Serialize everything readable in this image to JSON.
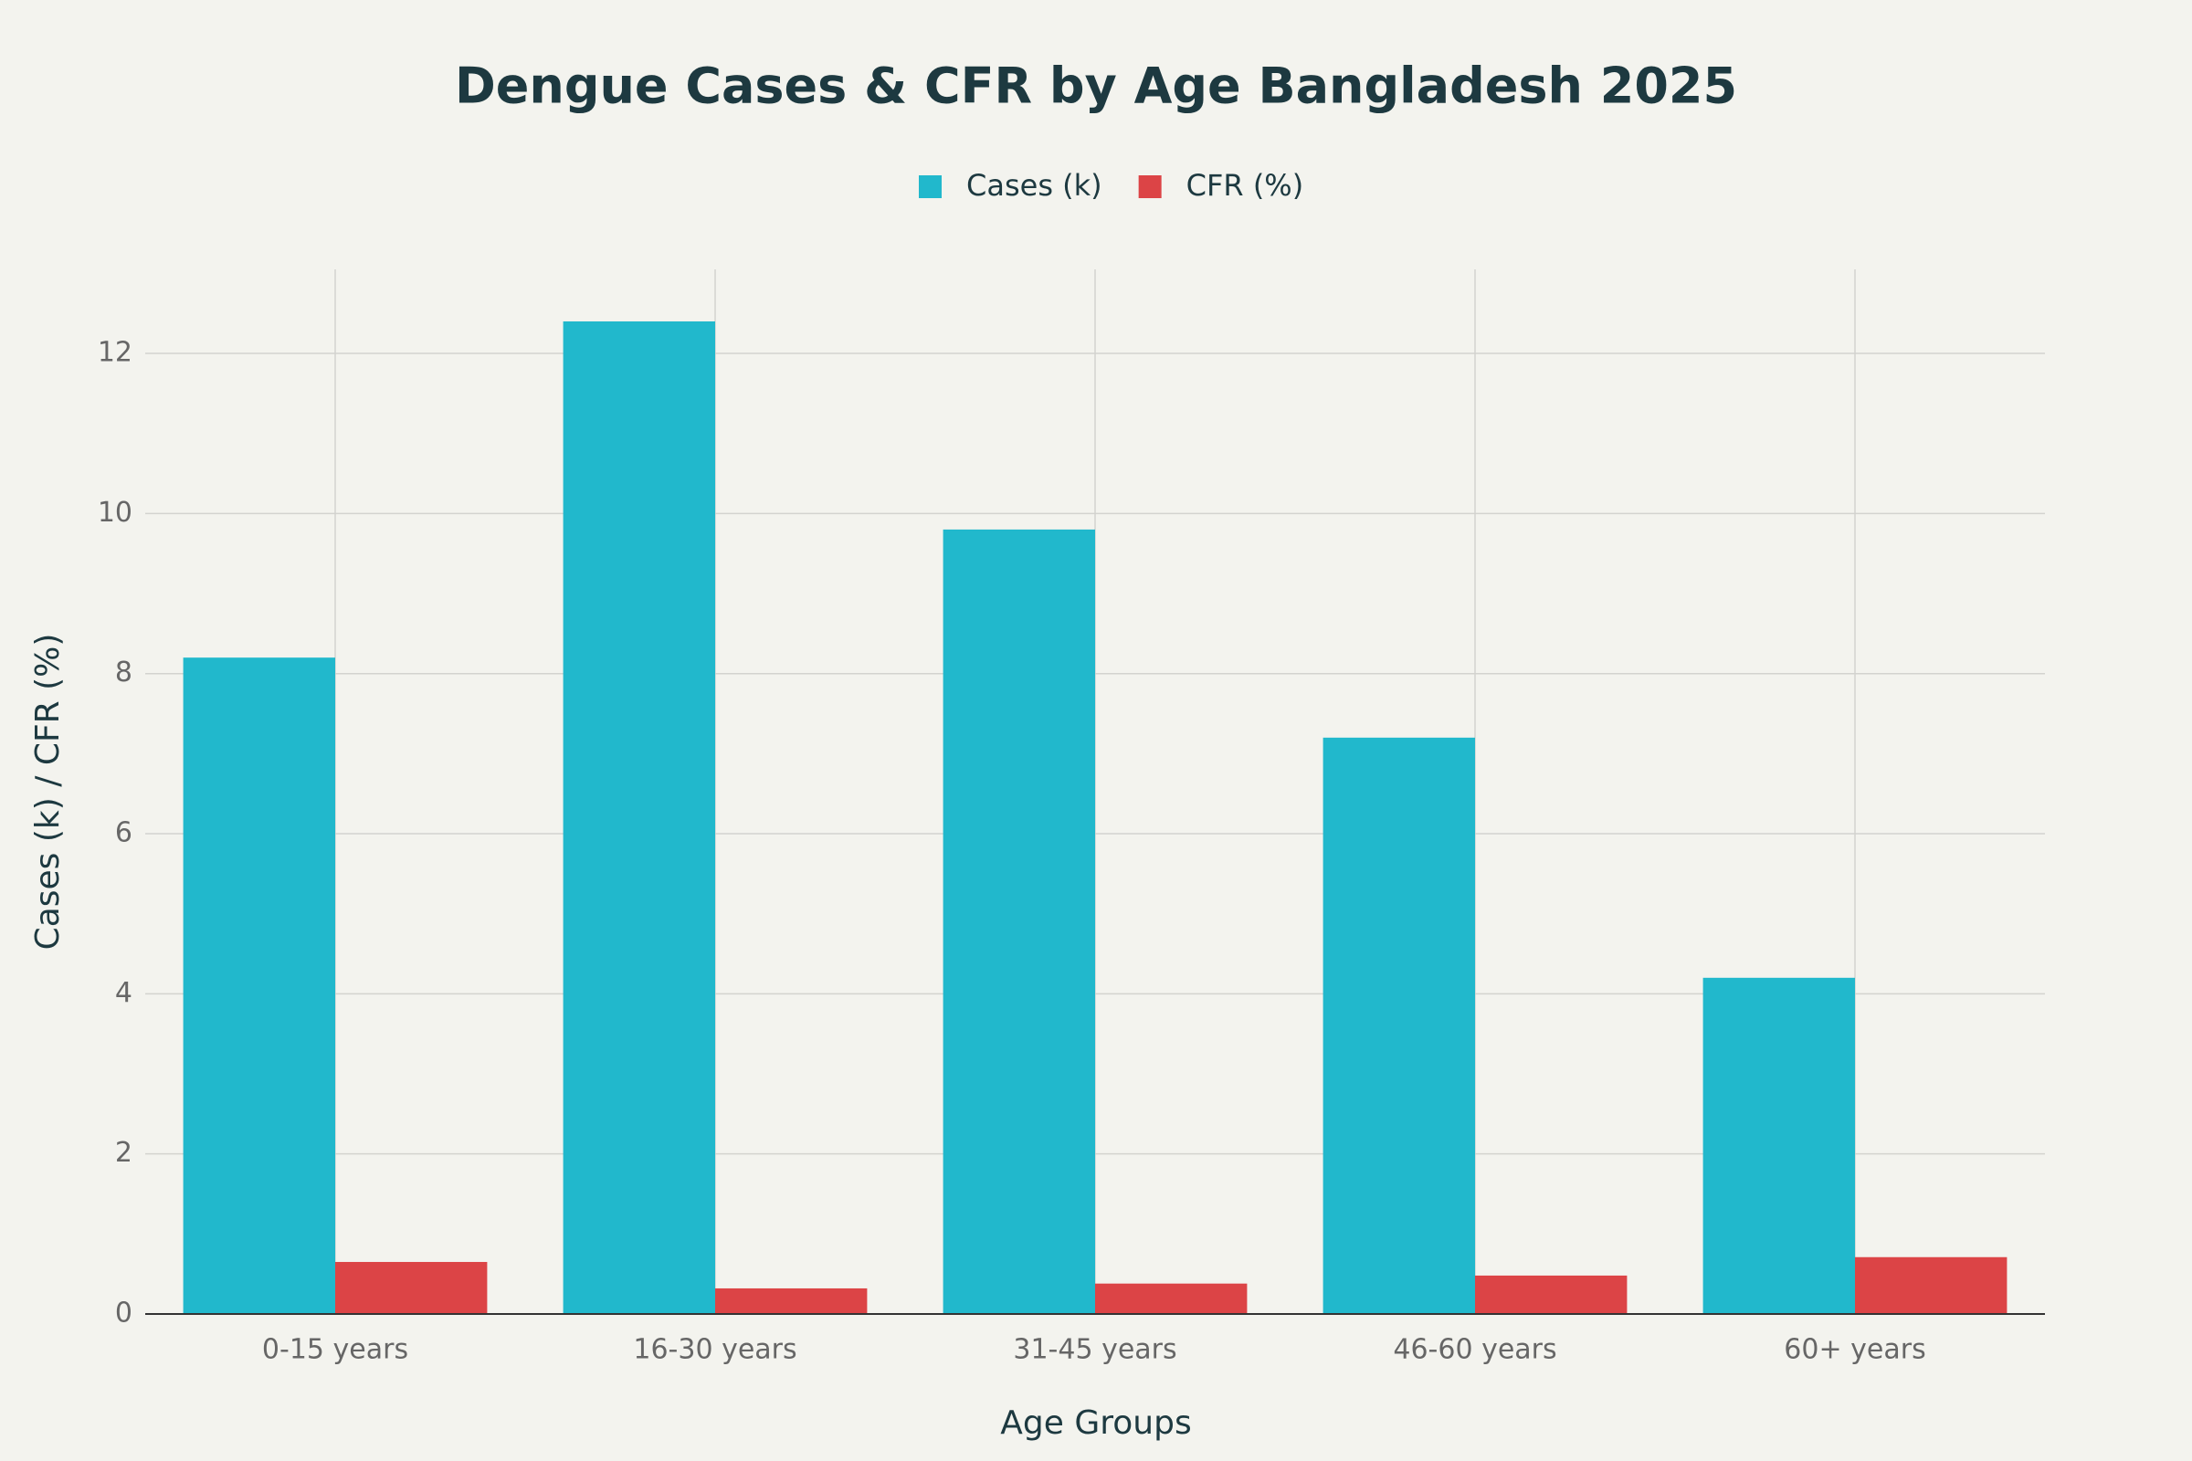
{
  "chart_data": {
    "type": "bar",
    "title": "Dengue Cases & CFR by Age Bangladesh 2025",
    "x_label": "Age Groups",
    "y_label": "Cases (k) / CFR (%)",
    "categories": [
      "0-15 years",
      "16-30 years",
      "31-45 years",
      "46-60 years",
      "60+ years"
    ],
    "series": [
      {
        "name": "Cases (k)",
        "color": "#21b8cc",
        "values": [
          8.2,
          12.4,
          9.8,
          7.2,
          4.2
        ]
      },
      {
        "name": "CFR (%)",
        "color": "#dc4446",
        "values": [
          0.65,
          0.32,
          0.38,
          0.48,
          0.71
        ]
      }
    ],
    "ylim": [
      0,
      13.05
    ],
    "yticks": [
      0,
      2,
      4,
      6,
      8,
      10,
      12
    ],
    "grid": true
  }
}
